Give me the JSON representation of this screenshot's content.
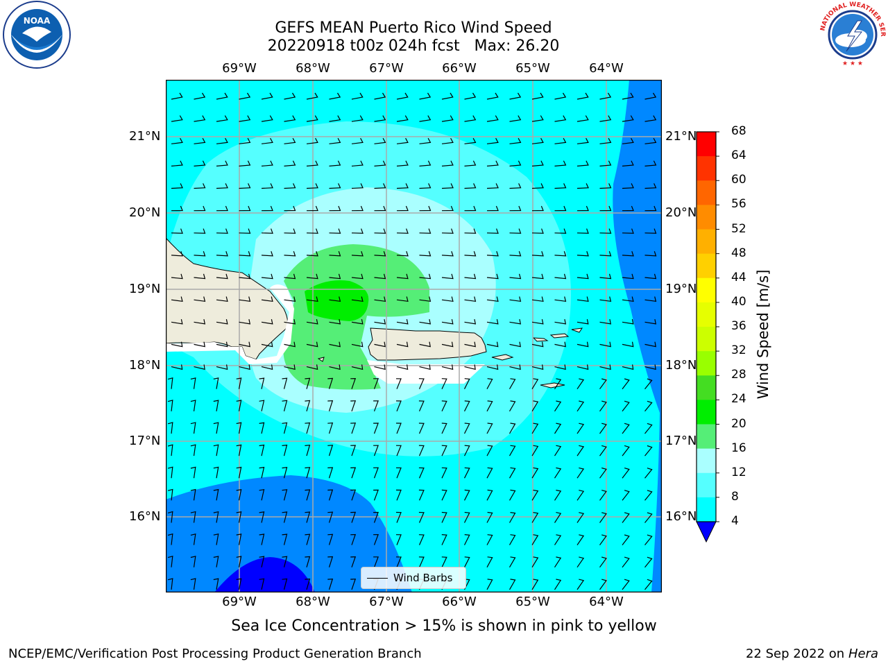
{
  "header": {
    "title_line1": "GEFS MEAN Puerto Rico Wind Speed",
    "title_line2": "20220918 t00z 024h fcst   Max: 26.20"
  },
  "logos": {
    "left": {
      "name": "noaa-logo",
      "text": "NOAA"
    },
    "right": {
      "name": "nws-logo",
      "text": "NATIONAL WEATHER SERVICE"
    }
  },
  "map": {
    "lon_labels": [
      "69°W",
      "68°W",
      "67°W",
      "66°W",
      "65°W",
      "64°W"
    ],
    "lat_labels": [
      "21°N",
      "20°N",
      "19°N",
      "18°N",
      "17°N",
      "16°N"
    ],
    "legend_label": "Wind Barbs"
  },
  "colorbar": {
    "title": "Wind Speed [m/s]",
    "ticks": [
      "68",
      "64",
      "60",
      "56",
      "52",
      "48",
      "44",
      "40",
      "36",
      "32",
      "28",
      "24",
      "20",
      "16",
      "12",
      "8",
      "4"
    ],
    "colors": [
      "#ff0000",
      "#ff3300",
      "#ff6600",
      "#ff8c00",
      "#ffb000",
      "#ffd000",
      "#ffff00",
      "#e6ff00",
      "#ccff00",
      "#99ff00",
      "#44dd22",
      "#00ee00",
      "#55ee77",
      "#aaffff",
      "#55ffff",
      "#00ffff",
      "#0088ff"
    ],
    "extend_color": "#0000ff"
  },
  "caption": "Sea Ice Concentration > 15% is shown in pink to yellow",
  "footer": {
    "left": "NCEP/EMC/Verification Post Processing Product Generation Branch",
    "right_date": "22 Sep 2022 on",
    "right_host": "Hera"
  }
}
